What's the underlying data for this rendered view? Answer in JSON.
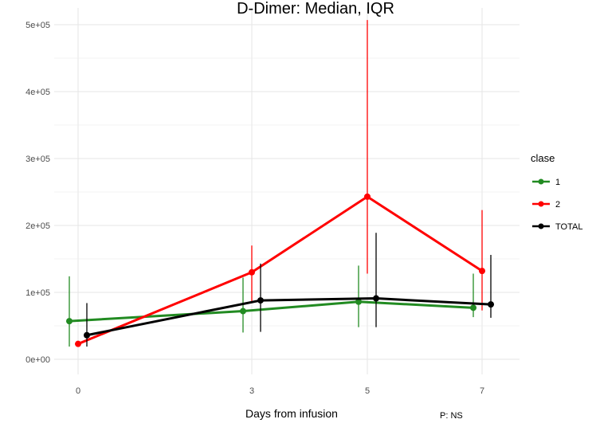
{
  "chart_data": {
    "type": "line",
    "title": "D-Dimer: Median, IQR",
    "xlabel": "Days from infusion",
    "ylabel": "",
    "note": "P: NS",
    "x_ticks": [
      0,
      3,
      5,
      7
    ],
    "y_ticks": [
      {
        "value": 0,
        "label": "0e+00"
      },
      {
        "value": 100000,
        "label": "1e+05"
      },
      {
        "value": 200000,
        "label": "2e+05"
      },
      {
        "value": 300000,
        "label": "3e+05"
      },
      {
        "value": 400000,
        "label": "4e+05"
      },
      {
        "value": 500000,
        "label": "5e+05"
      }
    ],
    "ylim": [
      0,
      500000
    ],
    "grid": true,
    "legend_title": "clase",
    "legend_position": "right",
    "series": [
      {
        "name": "1",
        "color": "#228b22",
        "points": [
          {
            "x": 0,
            "y": 57000,
            "low": 19000,
            "high": 124000
          },
          {
            "x": 3,
            "y": 72000,
            "low": 40000,
            "high": 122000
          },
          {
            "x": 5,
            "y": 86000,
            "low": 48000,
            "high": 140000
          },
          {
            "x": 7,
            "y": 77000,
            "low": 63000,
            "high": 128000
          }
        ]
      },
      {
        "name": "2",
        "color": "#ff0000",
        "points": [
          {
            "x": 0,
            "y": 23000,
            "low": 22000,
            "high": 26000
          },
          {
            "x": 3,
            "y": 130000,
            "low": 85000,
            "high": 170000
          },
          {
            "x": 5,
            "y": 243000,
            "low": 128000,
            "high": 507000
          },
          {
            "x": 7,
            "y": 132000,
            "low": 73000,
            "high": 223000
          }
        ]
      },
      {
        "name": "TOTAL",
        "color": "#000000",
        "points": [
          {
            "x": 0,
            "y": 36000,
            "low": 19000,
            "high": 84000
          },
          {
            "x": 3,
            "y": 88000,
            "low": 41000,
            "high": 143000
          },
          {
            "x": 5,
            "y": 91000,
            "low": 48000,
            "high": 189000
          },
          {
            "x": 7,
            "y": 82000,
            "low": 62000,
            "high": 156000
          }
        ]
      }
    ]
  }
}
